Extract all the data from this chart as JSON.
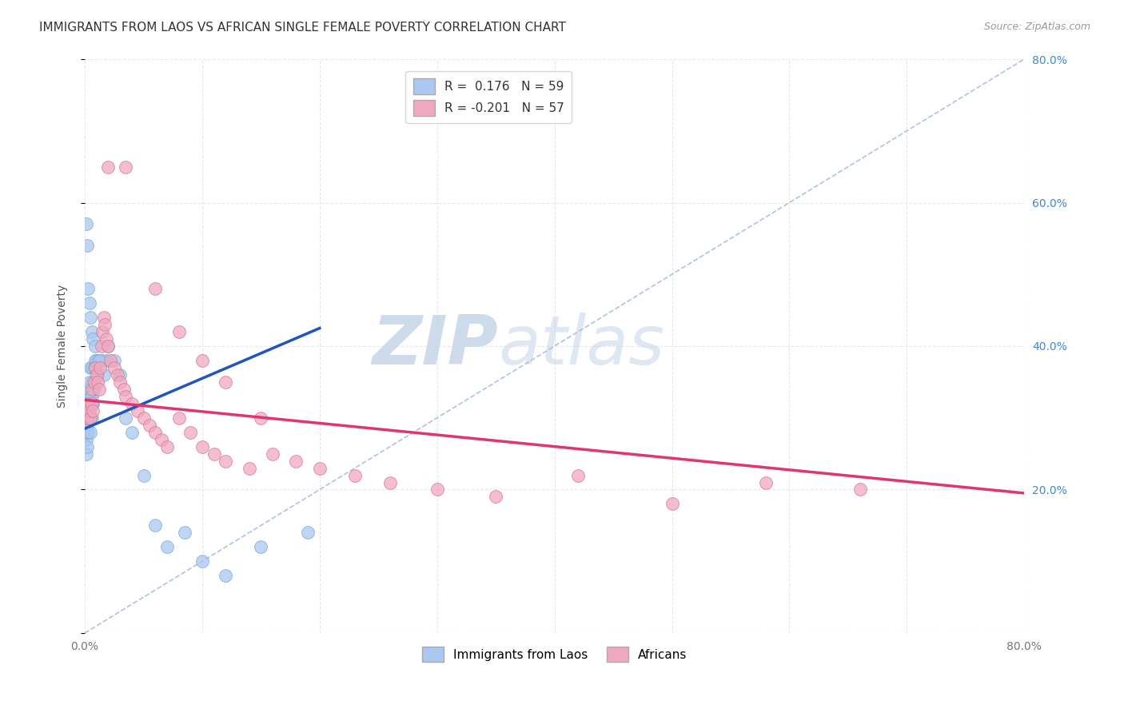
{
  "title": "IMMIGRANTS FROM LAOS VS AFRICAN SINGLE FEMALE POVERTY CORRELATION CHART",
  "source": "Source: ZipAtlas.com",
  "ylabel_left": "Single Female Poverty",
  "xlim": [
    0.0,
    0.8
  ],
  "ylim": [
    0.0,
    0.8
  ],
  "xtick_vals": [
    0.0,
    0.1,
    0.2,
    0.3,
    0.4,
    0.5,
    0.6,
    0.7,
    0.8
  ],
  "xtick_labels": [
    "0.0%",
    "",
    "",
    "",
    "",
    "",
    "",
    "",
    "80.0%"
  ],
  "ytick_right_vals": [
    0.2,
    0.4,
    0.6,
    0.8
  ],
  "ytick_right_labels": [
    "20.0%",
    "40.0%",
    "60.0%",
    "80.0%"
  ],
  "series1_name": "Immigrants from Laos",
  "series1_color": "#aac8f0",
  "series1_edge": "#7aadd4",
  "series1_R": "0.176",
  "series1_N": "59",
  "series1_line_color": "#2255bb",
  "series2_name": "Africans",
  "series2_color": "#f0a8c0",
  "series2_edge": "#d47a90",
  "series2_R": "-0.201",
  "series2_N": "57",
  "series2_line_color": "#e03570",
  "ref_line_color": "#aabbdd",
  "background_color": "#ffffff",
  "grid_color": "#e8e8e8",
  "watermark_zip": "ZIP",
  "watermark_atlas": "atlas",
  "title_fontsize": 11,
  "axis_label_fontsize": 10,
  "tick_fontsize": 10,
  "legend_fontsize": 11,
  "source_fontsize": 9,
  "blue_x": [
    0.001,
    0.001,
    0.001,
    0.001,
    0.001,
    0.002,
    0.002,
    0.002,
    0.002,
    0.002,
    0.002,
    0.002,
    0.003,
    0.003,
    0.003,
    0.003,
    0.004,
    0.004,
    0.004,
    0.005,
    0.005,
    0.005,
    0.005,
    0.006,
    0.006,
    0.006,
    0.007,
    0.007,
    0.008,
    0.008,
    0.009,
    0.01,
    0.011,
    0.012,
    0.014,
    0.016,
    0.018,
    0.02,
    0.025,
    0.03,
    0.035,
    0.04,
    0.05,
    0.06,
    0.07,
    0.085,
    0.1,
    0.12,
    0.15,
    0.19,
    0.001,
    0.002,
    0.003,
    0.004,
    0.005,
    0.006,
    0.007,
    0.009,
    0.012
  ],
  "blue_y": [
    0.27,
    0.28,
    0.29,
    0.3,
    0.25,
    0.26,
    0.28,
    0.29,
    0.3,
    0.31,
    0.32,
    0.33,
    0.28,
    0.3,
    0.32,
    0.34,
    0.3,
    0.32,
    0.35,
    0.28,
    0.3,
    0.33,
    0.37,
    0.3,
    0.33,
    0.37,
    0.32,
    0.35,
    0.34,
    0.37,
    0.38,
    0.38,
    0.36,
    0.38,
    0.38,
    0.36,
    0.38,
    0.4,
    0.38,
    0.36,
    0.3,
    0.28,
    0.22,
    0.15,
    0.12,
    0.14,
    0.1,
    0.08,
    0.12,
    0.14,
    0.57,
    0.54,
    0.48,
    0.46,
    0.44,
    0.42,
    0.41,
    0.4,
    0.38
  ],
  "pink_x": [
    0.001,
    0.002,
    0.003,
    0.004,
    0.005,
    0.006,
    0.006,
    0.007,
    0.008,
    0.009,
    0.01,
    0.011,
    0.012,
    0.013,
    0.014,
    0.015,
    0.016,
    0.017,
    0.018,
    0.02,
    0.022,
    0.025,
    0.028,
    0.03,
    0.033,
    0.035,
    0.04,
    0.045,
    0.05,
    0.055,
    0.06,
    0.065,
    0.07,
    0.08,
    0.09,
    0.1,
    0.11,
    0.12,
    0.14,
    0.16,
    0.18,
    0.2,
    0.23,
    0.26,
    0.3,
    0.35,
    0.42,
    0.5,
    0.58,
    0.66,
    0.02,
    0.035,
    0.06,
    0.08,
    0.1,
    0.12,
    0.15
  ],
  "pink_y": [
    0.31,
    0.3,
    0.32,
    0.31,
    0.3,
    0.32,
    0.34,
    0.31,
    0.35,
    0.37,
    0.36,
    0.35,
    0.34,
    0.37,
    0.4,
    0.42,
    0.44,
    0.43,
    0.41,
    0.4,
    0.38,
    0.37,
    0.36,
    0.35,
    0.34,
    0.33,
    0.32,
    0.31,
    0.3,
    0.29,
    0.28,
    0.27,
    0.26,
    0.3,
    0.28,
    0.26,
    0.25,
    0.24,
    0.23,
    0.25,
    0.24,
    0.23,
    0.22,
    0.21,
    0.2,
    0.19,
    0.22,
    0.18,
    0.21,
    0.2,
    0.65,
    0.65,
    0.48,
    0.42,
    0.38,
    0.35,
    0.3
  ],
  "blue_line_x0": 0.0,
  "blue_line_y0": 0.285,
  "blue_line_x1": 0.2,
  "blue_line_y1": 0.425,
  "pink_line_x0": 0.0,
  "pink_line_y0": 0.325,
  "pink_line_x1": 0.8,
  "pink_line_y1": 0.195
}
